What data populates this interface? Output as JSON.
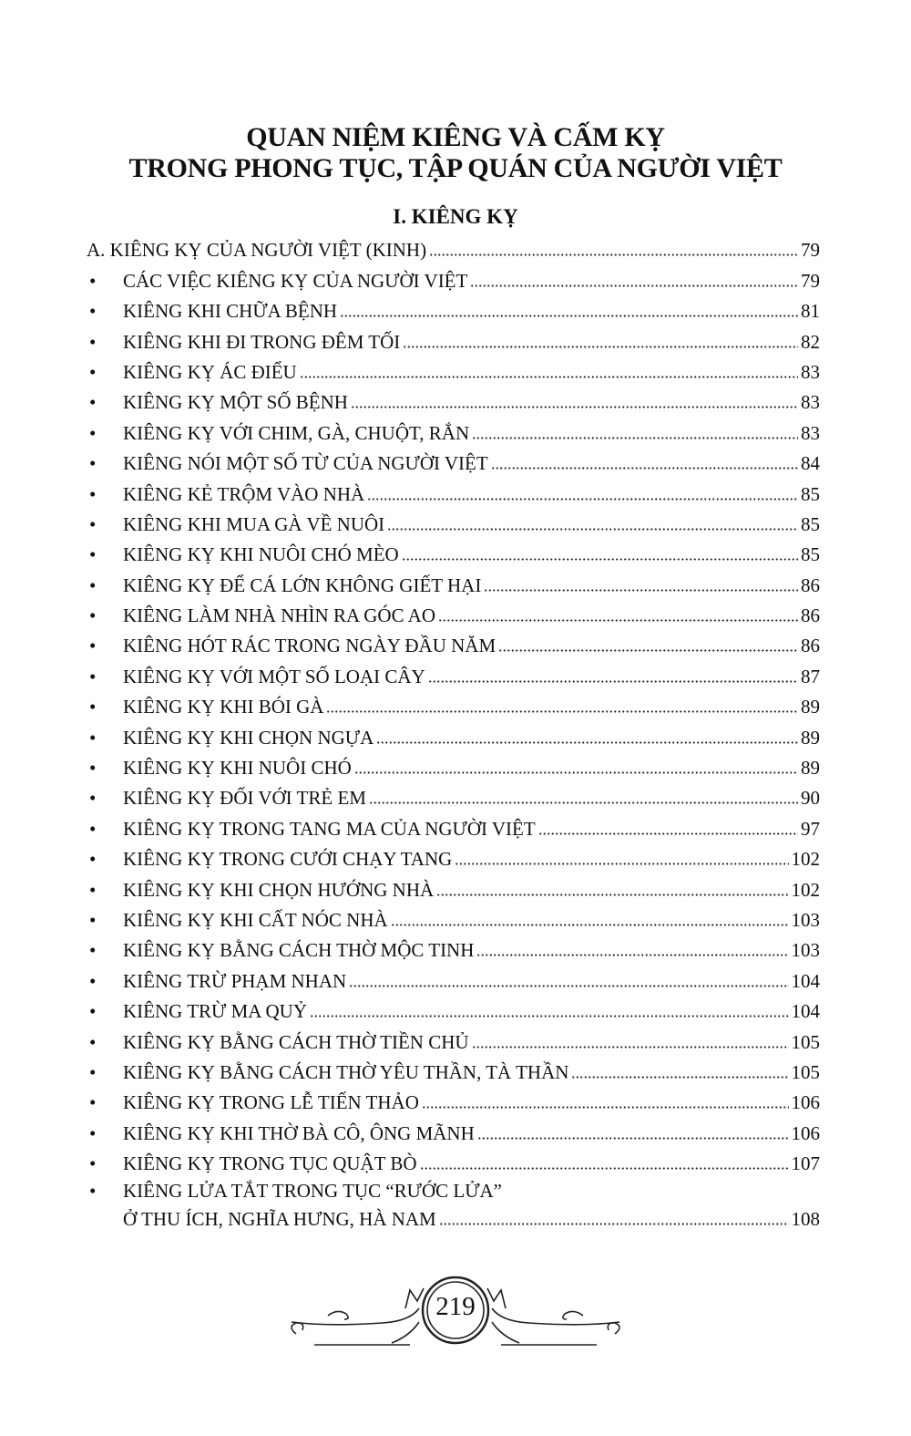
{
  "title": {
    "line1": "QUAN NIỆM KIÊNG VÀ CẤM KỴ",
    "line2": "TRONG PHONG TỤC, TẬP QUÁN CỦA NGƯỜI VIỆT"
  },
  "section": "I. KIÊNG KỴ",
  "toc": {
    "heading": {
      "text": "A. KIÊNG KỴ CỦA NGƯỜI VIỆT (KINH)",
      "page": "79"
    },
    "bullet": "•",
    "items": [
      {
        "text": "CÁC VIỆC KIÊNG KỴ CỦA NGƯỜI VIỆT",
        "page": "79"
      },
      {
        "text": "KIÊNG KHI CHỮA BỆNH",
        "page": "81"
      },
      {
        "text": "KIÊNG KHI ĐI TRONG ĐÊM TỐI",
        "page": "82"
      },
      {
        "text": "KIÊNG KỴ ÁC ĐIỂU",
        "page": "83"
      },
      {
        "text": "KIÊNG KỴ MỘT SỐ BỆNH",
        "page": "83"
      },
      {
        "text": "KIÊNG KỴ VỚI CHIM, GÀ, CHUỘT, RẮN",
        "page": "83"
      },
      {
        "text": "KIÊNG NÓI MỘT SỐ TỪ CỦA NGƯỜI VIỆT",
        "page": "84"
      },
      {
        "text": "KIÊNG KẺ TRỘM VÀO NHÀ",
        "page": "85"
      },
      {
        "text": "KIÊNG KHI MUA GÀ VỀ NUÔI",
        "page": "85"
      },
      {
        "text": "KIÊNG KỴ KHI NUÔI CHÓ MÈO",
        "page": "85"
      },
      {
        "text": "KIÊNG KỴ ĐỂ CÁ LỚN KHÔNG GIẾT HẠI",
        "page": "86"
      },
      {
        "text": "KIÊNG LÀM NHÀ NHÌN RA GÓC AO",
        "page": "86"
      },
      {
        "text": "KIÊNG HÓT RÁC TRONG NGÀY ĐẦU NĂM",
        "page": "86"
      },
      {
        "text": "KIÊNG KỴ VỚI MỘT SỐ LOẠI CÂY",
        "page": "87"
      },
      {
        "text": "KIÊNG KỴ KHI BÓI GÀ",
        "page": "89"
      },
      {
        "text": "KIÊNG KỴ KHI CHỌN NGỰA",
        "page": "89"
      },
      {
        "text": "KIÊNG KỴ KHI NUÔI CHÓ",
        "page": "89"
      },
      {
        "text": "KIÊNG KỴ ĐỐI VỚI TRẺ EM",
        "page": "90"
      },
      {
        "text": "KIÊNG KỴ TRONG TANG MA CỦA NGƯỜI VIỆT",
        "page": "97"
      },
      {
        "text": "KIÊNG KỴ TRONG CƯỚI CHẠY TANG",
        "page": "102"
      },
      {
        "text": "KIÊNG KỴ KHI CHỌN HƯỚNG NHÀ",
        "page": "102"
      },
      {
        "text": "KIÊNG KỴ KHI CẤT NÓC NHÀ",
        "page": "103"
      },
      {
        "text": "KIÊNG KỴ BẰNG CÁCH THỜ MỘC TINH",
        "page": "103"
      },
      {
        "text": "KIÊNG TRỪ PHẠM NHAN",
        "page": "104"
      },
      {
        "text": "KIÊNG TRỪ MA QUỶ",
        "page": "104"
      },
      {
        "text": "KIÊNG KỴ BẰNG CÁCH THỜ TIỀN CHỦ",
        "page": "105"
      },
      {
        "text": "KIÊNG KỴ BẰNG CÁCH THỜ YÊU THẦN, TÀ THẦN",
        "page": "105"
      },
      {
        "text": "KIÊNG KỴ TRONG LỄ TIẾN THẢO",
        "page": "106"
      },
      {
        "text": "KIÊNG KỴ KHI THỜ BÀ CÔ, ÔNG MÃNH",
        "page": "106"
      },
      {
        "text": "KIÊNG KỴ TRONG TỤC QUẬT BÒ",
        "page": "107"
      }
    ],
    "last_item": {
      "line1": "KIÊNG LỬA TẮT TRONG TỤC “RƯỚC LỬA”",
      "line2": "Ở THU ÍCH, NGHĨA HƯNG, HÀ NAM",
      "page": "108"
    }
  },
  "footer": {
    "page_number": "219"
  }
}
